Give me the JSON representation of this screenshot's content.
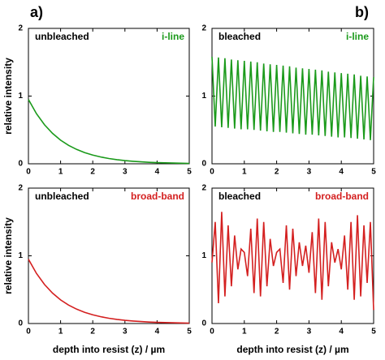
{
  "chart_data": [
    {
      "type": "line",
      "panel_label": "a)",
      "state_label": "unbleached",
      "source_label": "i-line",
      "ylabel": "relative intensity",
      "color": "#1b9a1b",
      "xlim": [
        0,
        5
      ],
      "xticks": [
        0,
        1,
        2,
        3,
        4,
        5
      ],
      "ylim": [
        0,
        2
      ],
      "yticks": [
        0,
        1,
        2
      ],
      "x": [
        0,
        0.25,
        0.5,
        0.75,
        1,
        1.25,
        1.5,
        1.75,
        2,
        2.25,
        2.5,
        2.75,
        3,
        3.25,
        3.5,
        3.75,
        4,
        4.25,
        4.5,
        4.75,
        5
      ],
      "values": [
        0.95,
        0.74,
        0.576,
        0.449,
        0.349,
        0.272,
        0.212,
        0.165,
        0.129,
        0.1,
        0.078,
        0.061,
        0.047,
        0.037,
        0.029,
        0.022,
        0.017,
        0.014,
        0.011,
        0.008,
        0.006
      ]
    },
    {
      "type": "line",
      "panel_label": "b)",
      "state_label": "bleached",
      "source_label": "i-line",
      "color": "#1b9a1b",
      "xlim": [
        0,
        5
      ],
      "xticks": [
        0,
        1,
        2,
        3,
        4,
        5
      ],
      "ylim": [
        0,
        2
      ],
      "yticks": [
        0,
        1,
        2
      ],
      "x": [
        0,
        0.1,
        0.2,
        0.3,
        0.4,
        0.5,
        0.6,
        0.7,
        0.8,
        0.9,
        1,
        1.1,
        1.2,
        1.3,
        1.4,
        1.5,
        1.6,
        1.7,
        1.8,
        1.9,
        2,
        2.1,
        2.2,
        2.3,
        2.4,
        2.5,
        2.6,
        2.7,
        2.8,
        2.9,
        3,
        3.1,
        3.2,
        3.3,
        3.4,
        3.5,
        3.6,
        3.7,
        3.8,
        3.9,
        4,
        4.1,
        4.2,
        4.3,
        4.4,
        4.5,
        4.6,
        4.7,
        4.8,
        4.9,
        5
      ],
      "values": [
        1.58,
        0.55,
        1.57,
        0.54,
        1.56,
        0.53,
        1.54,
        0.52,
        1.53,
        0.51,
        1.52,
        0.51,
        1.51,
        0.5,
        1.5,
        0.49,
        1.48,
        0.48,
        1.47,
        0.47,
        1.46,
        0.47,
        1.45,
        0.46,
        1.44,
        0.45,
        1.42,
        0.44,
        1.41,
        0.43,
        1.4,
        0.43,
        1.39,
        0.42,
        1.38,
        0.41,
        1.36,
        0.4,
        1.35,
        0.39,
        1.34,
        0.39,
        1.33,
        0.38,
        1.32,
        0.37,
        1.3,
        0.36,
        1.29,
        0.35,
        1.28
      ]
    },
    {
      "type": "line",
      "state_label": "unbleached",
      "source_label": "broad-band",
      "ylabel": "relative intensity",
      "xlabel": "depth into resist (z) / µm",
      "color": "#d42020",
      "xlim": [
        0,
        5
      ],
      "xticks": [
        0,
        1,
        2,
        3,
        4,
        5
      ],
      "ylim": [
        0,
        2
      ],
      "yticks": [
        0,
        1,
        2
      ],
      "x": [
        0,
        0.25,
        0.5,
        0.75,
        1,
        1.25,
        1.5,
        1.75,
        2,
        2.25,
        2.5,
        2.75,
        3,
        3.25,
        3.5,
        3.75,
        4,
        4.25,
        4.5,
        4.75,
        5
      ],
      "values": [
        0.95,
        0.74,
        0.576,
        0.449,
        0.349,
        0.272,
        0.212,
        0.165,
        0.129,
        0.1,
        0.078,
        0.061,
        0.047,
        0.037,
        0.029,
        0.022,
        0.017,
        0.014,
        0.011,
        0.008,
        0.006
      ]
    },
    {
      "type": "line",
      "state_label": "bleached",
      "source_label": "broad-band",
      "xlabel": "depth into resist (z) / µm",
      "color": "#d42020",
      "xlim": [
        0,
        5
      ],
      "xticks": [
        0,
        1,
        2,
        3,
        4,
        5
      ],
      "ylim": [
        0,
        2
      ],
      "yticks": [
        0,
        1,
        2
      ],
      "x": [
        0,
        0.1,
        0.2,
        0.3,
        0.4,
        0.5,
        0.6,
        0.7,
        0.8,
        0.9,
        1,
        1.1,
        1.2,
        1.3,
        1.4,
        1.5,
        1.6,
        1.7,
        1.8,
        1.9,
        2,
        2.1,
        2.2,
        2.3,
        2.4,
        2.5,
        2.6,
        2.7,
        2.8,
        2.9,
        3,
        3.1,
        3.2,
        3.3,
        3.4,
        3.5,
        3.6,
        3.7,
        3.8,
        3.9,
        4,
        4.1,
        4.2,
        4.3,
        4.4,
        4.5,
        4.6,
        4.7,
        4.8,
        4.9,
        5
      ],
      "values": [
        0.9,
        1.5,
        0.3,
        1.65,
        0.4,
        1.45,
        0.55,
        1.3,
        0.8,
        1.1,
        1.05,
        0.7,
        1.4,
        0.45,
        1.55,
        0.4,
        1.5,
        0.55,
        1.25,
        0.85,
        1.05,
        1.1,
        0.6,
        1.45,
        0.5,
        1.4,
        0.7,
        1.2,
        0.85,
        1.15,
        0.75,
        1.35,
        0.45,
        1.55,
        0.35,
        1.5,
        0.55,
        1.2,
        0.9,
        1.1,
        0.8,
        1.3,
        0.5,
        1.5,
        0.35,
        1.6,
        0.4,
        1.45,
        0.6,
        1.5,
        0.2
      ]
    }
  ]
}
